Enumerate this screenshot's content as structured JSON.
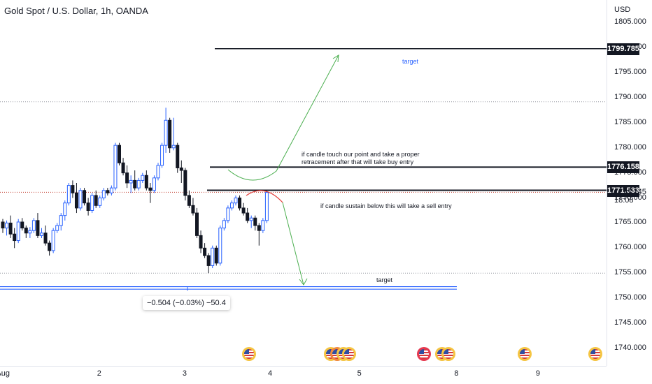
{
  "header": {
    "title": "Gold Spot / U.S. Dollar, 1h, OANDA",
    "currency": "USD"
  },
  "chart_data": {
    "type": "candlestick",
    "title": "Gold Spot / U.S. Dollar, 1h, OANDA",
    "ylim": [
      1736.5,
      1809.5
    ],
    "y_ticks": [
      "1805.000",
      "1800.000",
      "1795.000",
      "1790.000",
      "1785.000",
      "1780.000",
      "1775.000",
      "1770.000",
      "1765.000",
      "1760.000",
      "1755.000",
      "1750.000",
      "1745.000",
      "1740.000"
    ],
    "y_tick_values": [
      1805,
      1800,
      1795,
      1790,
      1785,
      1780,
      1775,
      1770,
      1765,
      1760,
      1755,
      1750,
      1745,
      1740
    ],
    "x_ticks": [
      "Aug",
      "2",
      "3",
      "4",
      "5",
      "8",
      "9"
    ],
    "x_tick_bars": [
      -1,
      25,
      47,
      69,
      92,
      117,
      138
    ],
    "candles": [
      [
        1765.2,
        1765.8,
        1763.0,
        1764.0
      ],
      [
        1764.0,
        1765.5,
        1762.5,
        1765.0
      ],
      [
        1765.0,
        1766.5,
        1762.0,
        1762.8
      ],
      [
        1762.8,
        1764.0,
        1760.0,
        1761.5
      ],
      [
        1761.5,
        1765.8,
        1761.0,
        1765.2
      ],
      [
        1765.2,
        1766.0,
        1763.5,
        1764.0
      ],
      [
        1764.0,
        1764.5,
        1762.0,
        1763.0
      ],
      [
        1763.0,
        1764.2,
        1762.0,
        1763.5
      ],
      [
        1763.5,
        1766.0,
        1763.0,
        1765.5
      ],
      [
        1765.5,
        1767.0,
        1762.0,
        1762.5
      ],
      [
        1762.5,
        1764.0,
        1762.0,
        1763.0
      ],
      [
        1763.0,
        1764.5,
        1760.5,
        1761.0
      ],
      [
        1761.0,
        1761.5,
        1758.5,
        1759.5
      ],
      [
        1759.5,
        1764.0,
        1759.0,
        1763.5
      ],
      [
        1763.5,
        1765.0,
        1763.0,
        1764.5
      ],
      [
        1764.5,
        1767.0,
        1763.5,
        1766.5
      ],
      [
        1766.5,
        1769.5,
        1765.5,
        1769.0
      ],
      [
        1769.0,
        1773.0,
        1768.5,
        1772.5
      ],
      [
        1772.5,
        1773.5,
        1770.0,
        1771.0
      ],
      [
        1771.0,
        1773.0,
        1767.0,
        1768.0
      ],
      [
        1768.0,
        1772.0,
        1767.5,
        1771.5
      ],
      [
        1771.5,
        1772.0,
        1768.5,
        1769.0
      ],
      [
        1769.0,
        1770.0,
        1766.5,
        1767.5
      ],
      [
        1767.5,
        1771.0,
        1767.0,
        1770.5
      ],
      [
        1770.5,
        1771.5,
        1768.0,
        1768.5
      ],
      [
        1768.5,
        1770.5,
        1768.0,
        1770.0
      ],
      [
        1770.0,
        1772.0,
        1769.5,
        1771.5
      ],
      [
        1771.5,
        1772.0,
        1770.5,
        1771.0
      ],
      [
        1771.0,
        1772.5,
        1770.5,
        1772.0
      ],
      [
        1772.0,
        1781.0,
        1771.5,
        1780.5
      ],
      [
        1780.5,
        1781.0,
        1776.5,
        1777.0
      ],
      [
        1777.0,
        1778.0,
        1774.5,
        1775.0
      ],
      [
        1775.0,
        1776.5,
        1772.0,
        1773.0
      ],
      [
        1773.0,
        1774.5,
        1771.0,
        1773.5
      ],
      [
        1773.5,
        1775.5,
        1771.5,
        1772.0
      ],
      [
        1772.0,
        1774.0,
        1771.5,
        1773.5
      ],
      [
        1773.5,
        1775.0,
        1773.0,
        1774.5
      ],
      [
        1774.5,
        1775.5,
        1771.5,
        1772.0
      ],
      [
        1772.0,
        1773.0,
        1769.0,
        1771.5
      ],
      [
        1771.5,
        1774.5,
        1771.0,
        1774.0
      ],
      [
        1774.0,
        1777.0,
        1773.5,
        1776.5
      ],
      [
        1776.5,
        1781.0,
        1776.0,
        1780.5
      ],
      [
        1780.5,
        1788.0,
        1779.0,
        1785.5
      ],
      [
        1785.5,
        1786.0,
        1779.0,
        1780.0
      ],
      [
        1780.0,
        1786.0,
        1779.5,
        1780.5
      ],
      [
        1780.5,
        1781.0,
        1775.0,
        1776.0
      ],
      [
        1776.0,
        1777.5,
        1773.0,
        1775.5
      ],
      [
        1775.5,
        1776.0,
        1769.5,
        1770.5
      ],
      [
        1770.5,
        1771.5,
        1768.0,
        1768.5
      ],
      [
        1768.5,
        1770.0,
        1766.5,
        1767.0
      ],
      [
        1767.0,
        1768.0,
        1762.0,
        1762.5
      ],
      [
        1762.5,
        1763.5,
        1759.0,
        1760.0
      ],
      [
        1760.0,
        1761.0,
        1758.0,
        1758.5
      ],
      [
        1758.5,
        1759.0,
        1755.0,
        1756.5
      ],
      [
        1756.5,
        1760.5,
        1756.0,
        1760.0
      ],
      [
        1760.0,
        1760.5,
        1756.5,
        1757.0
      ],
      [
        1757.0,
        1764.5,
        1756.5,
        1764.0
      ],
      [
        1764.0,
        1766.0,
        1763.5,
        1765.5
      ],
      [
        1765.5,
        1768.5,
        1765.0,
        1768.0
      ],
      [
        1768.0,
        1769.5,
        1767.5,
        1769.0
      ],
      [
        1769.0,
        1770.5,
        1768.5,
        1770.0
      ],
      [
        1770.0,
        1770.5,
        1767.5,
        1768.0
      ],
      [
        1768.0,
        1769.0,
        1766.5,
        1767.0
      ],
      [
        1767.0,
        1768.0,
        1765.0,
        1765.5
      ],
      [
        1765.5,
        1766.5,
        1764.0,
        1766.0
      ],
      [
        1766.0,
        1766.5,
        1763.5,
        1764.5
      ],
      [
        1764.5,
        1765.0,
        1760.5,
        1763.5
      ],
      [
        1763.5,
        1766.0,
        1763.0,
        1765.5
      ],
      [
        1765.5,
        1771.5,
        1765.0,
        1771.1
      ]
    ],
    "horizontal_levels": [
      {
        "price": 1799.785,
        "label": "1799.785"
      },
      {
        "price": 1776.158,
        "label": "1776.158"
      },
      {
        "price": 1771.533,
        "label": "1771.533"
      }
    ],
    "current_price": "1771.145",
    "countdown": "18:08",
    "annotations": {
      "buy_note": [
        "if candle touch our point and take a proper",
        "retracement after that will take  buy entry"
      ],
      "sell_note": "if candle sustain below this will take a sell entry",
      "target_up": "target",
      "target_down": "target"
    },
    "measure_label": "−0.504 (−0.03%) −50.4",
    "colors": {
      "up": "#2962ff",
      "down": "#131722",
      "green_arrow": "#4caf50",
      "red_curve": "#e53935",
      "blue_line": "#2962ff"
    }
  }
}
